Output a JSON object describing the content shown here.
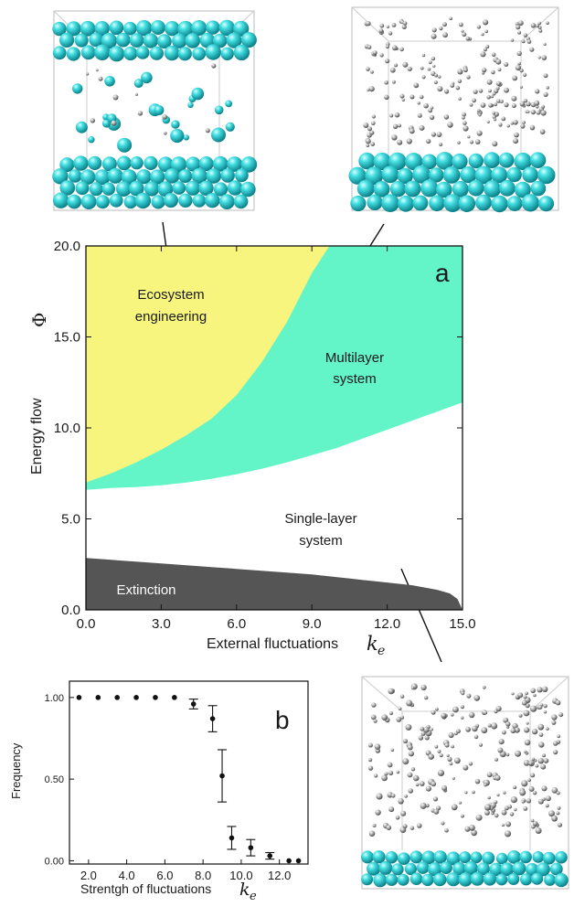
{
  "colors": {
    "ecosystem": "#f7f57d",
    "multilayer": "#63f5c8",
    "extinction": "#555555",
    "sphere_cyan": "#3fd6d9",
    "sphere_grey": "#a9a9a9"
  },
  "chart_data": [
    {
      "type": "area",
      "panel_letter": "a",
      "xlabel": "External fluctuations",
      "xlabel_symbol": "k",
      "xlabel_subscript": "e",
      "ylabel": "Energy flow",
      "ylabel_symbol": "Φ",
      "xlim": [
        0,
        15
      ],
      "ylim": [
        0,
        20
      ],
      "x_ticks": [
        "0.0",
        "3.0",
        "6.0",
        "9.0",
        "12.0",
        "15.0"
      ],
      "y_ticks": [
        "0.0",
        "5.0",
        "10.0",
        "15.0",
        "20.0"
      ],
      "regions": [
        {
          "name": "Ecosystem engineering",
          "label_lines": [
            "Ecosystem",
            "engineering"
          ],
          "color": "#f7f57d",
          "boundary": {
            "x": [
              0,
              1,
              2,
              3,
              4,
              5,
              6,
              7,
              8,
              9,
              9.7
            ],
            "y": [
              7.0,
              7.5,
              8.1,
              8.8,
              9.6,
              10.5,
              11.8,
              13.6,
              15.8,
              18.5,
              20.0
            ]
          }
        },
        {
          "name": "Multilayer system",
          "label_lines": [
            "Multilayer",
            "system"
          ],
          "color": "#63f5c8",
          "boundary": {
            "x": [
              0,
              1,
              2,
              3,
              4,
              5,
              6,
              7,
              8,
              9,
              10,
              11,
              12,
              13,
              14,
              15
            ],
            "y": [
              6.6,
              6.7,
              6.75,
              6.85,
              7.0,
              7.2,
              7.45,
              7.75,
              8.1,
              8.5,
              8.9,
              9.4,
              9.9,
              10.4,
              10.9,
              11.4
            ]
          }
        },
        {
          "name": "Single-layer system",
          "label_lines": [
            "Single-layer",
            "system"
          ],
          "color": "#ffffff"
        },
        {
          "name": "Extinction",
          "label_lines": [
            "Extinction"
          ],
          "color": "#555555",
          "boundary": {
            "x": [
              0,
              1,
              2,
              3,
              4,
              5,
              6,
              7,
              8,
              9,
              10,
              11,
              12,
              13,
              14,
              14.5,
              14.8,
              15
            ],
            "y": [
              2.85,
              2.75,
              2.65,
              2.55,
              2.45,
              2.35,
              2.25,
              2.15,
              2.05,
              1.95,
              1.8,
              1.65,
              1.5,
              1.35,
              1.1,
              0.9,
              0.6,
              0.0
            ]
          }
        }
      ]
    },
    {
      "type": "scatter",
      "panel_letter": "b",
      "xlabel": "Strentgh of fluctuations",
      "xlabel_symbol": "k",
      "xlabel_subscript": "e",
      "ylabel": "Frequency",
      "xlim": [
        1,
        13.5
      ],
      "ylim": [
        -0.02,
        1.1
      ],
      "x_ticks": [
        "2.0",
        "4.0",
        "6.0",
        "8.0",
        "10.0",
        "12.0"
      ],
      "y_ticks": [
        "0.00",
        "0.50",
        "1.00"
      ],
      "points": [
        {
          "x": 1.5,
          "y": 1.0,
          "err": 0
        },
        {
          "x": 2.5,
          "y": 1.0,
          "err": 0
        },
        {
          "x": 3.5,
          "y": 1.0,
          "err": 0
        },
        {
          "x": 4.5,
          "y": 1.0,
          "err": 0
        },
        {
          "x": 5.5,
          "y": 1.0,
          "err": 0
        },
        {
          "x": 6.5,
          "y": 1.0,
          "err": 0
        },
        {
          "x": 7.5,
          "y": 0.96,
          "err": 0.03
        },
        {
          "x": 8.5,
          "y": 0.87,
          "err": 0.08
        },
        {
          "x": 9.0,
          "y": 0.52,
          "err": 0.16
        },
        {
          "x": 9.5,
          "y": 0.14,
          "err": 0.07
        },
        {
          "x": 10.5,
          "y": 0.08,
          "err": 0.05
        },
        {
          "x": 11.5,
          "y": 0.03,
          "err": 0.02
        },
        {
          "x": 12.5,
          "y": 0.0,
          "err": 0
        },
        {
          "x": 13.0,
          "y": 0.0,
          "err": 0
        }
      ]
    }
  ],
  "snapshots": [
    {
      "name": "ecosystem-engineering-snapshot",
      "kind": "two-layers"
    },
    {
      "name": "multilayer-snapshot",
      "kind": "bottom-layer-with-gas"
    },
    {
      "name": "single-layer-snapshot",
      "kind": "single-layer-with-gas"
    }
  ]
}
